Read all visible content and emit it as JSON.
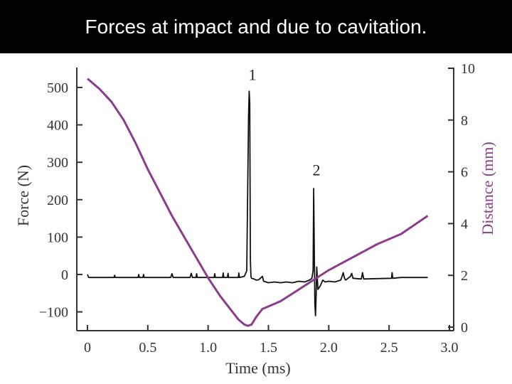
{
  "slide": {
    "title": "Forces at impact and due to cavitation."
  },
  "colors": {
    "force_series": "#111111",
    "distance_series": "#8a3d8a",
    "axis": "#333333",
    "banner": "#000000"
  },
  "chart_data": {
    "type": "line",
    "title": "",
    "xlabel": "Time (ms)",
    "ylabel": "Force (N)",
    "y2label": "Distance (mm)",
    "xlim": [
      0,
      3.0
    ],
    "ylim": [
      -140,
      530
    ],
    "y2lim": [
      0,
      10
    ],
    "x_ticks": [
      0,
      0.5,
      1.0,
      1.5,
      2.0,
      2.5,
      3.0
    ],
    "x_tick_labels": [
      "0",
      "0.5",
      "1.0",
      "1.5",
      "2.0",
      "2.5",
      "3.0"
    ],
    "y_ticks": [
      -100,
      0,
      100,
      200,
      300,
      400,
      500
    ],
    "y_tick_labels": [
      "−100",
      "0",
      "100",
      "200",
      "300",
      "400",
      "500"
    ],
    "y2_ticks": [
      0,
      2,
      4,
      6,
      8,
      10
    ],
    "y2_tick_labels": [
      "0",
      "2",
      "4",
      "6",
      "8",
      "10"
    ],
    "grid": false,
    "annotations": [
      {
        "text": "1",
        "x": 1.35,
        "y": 520
      },
      {
        "text": "2",
        "x": 1.88,
        "y": 265
      }
    ],
    "series": [
      {
        "axis": "left",
        "x": [
          0,
          0.01,
          0.05,
          0.22,
          0.225,
          0.23,
          0.42,
          0.425,
          0.43,
          0.46,
          0.465,
          0.47,
          0.69,
          0.7,
          0.71,
          0.85,
          0.86,
          0.87,
          0.9,
          0.905,
          0.91,
          1.05,
          1.055,
          1.06,
          1.12,
          1.125,
          1.13,
          1.16,
          1.165,
          1.17,
          1.25,
          1.255,
          1.26,
          1.3,
          1.32,
          1.335,
          1.34,
          1.345,
          1.35,
          1.355,
          1.36,
          1.38,
          1.4,
          1.42,
          1.45,
          1.46,
          1.48,
          1.5,
          1.55,
          1.6,
          1.65,
          1.7,
          1.75,
          1.8,
          1.84,
          1.86,
          1.87,
          1.875,
          1.88,
          1.885,
          1.89,
          1.895,
          1.9,
          1.91,
          1.93,
          1.95,
          1.97,
          2.0,
          2.05,
          2.1,
          2.12,
          2.13,
          2.14,
          2.18,
          2.19,
          2.2,
          2.27,
          2.28,
          2.29,
          2.52,
          2.525,
          2.53,
          2.6,
          2.7,
          2.82
        ],
        "y": [
          0,
          -8,
          -8,
          -8,
          -2,
          -8,
          -8,
          0,
          -8,
          -8,
          0,
          -8,
          -8,
          2,
          -8,
          -8,
          3,
          -8,
          -8,
          2,
          -8,
          -8,
          2,
          -8,
          -8,
          4,
          -8,
          -8,
          3,
          -8,
          -8,
          4,
          -8,
          -5,
          10,
          420,
          490,
          460,
          40,
          -5,
          -10,
          -12,
          -15,
          -14,
          -5,
          -18,
          -20,
          -22,
          -20,
          -22,
          -20,
          -22,
          -18,
          -20,
          -15,
          -10,
          10,
          230,
          60,
          -80,
          -110,
          -60,
          20,
          -40,
          -30,
          -15,
          -20,
          -18,
          -20,
          -15,
          5,
          -10,
          -15,
          -5,
          3,
          -10,
          -12,
          5,
          -12,
          -10,
          5,
          -10,
          -8,
          -8,
          -8
        ]
      },
      {
        "axis": "right",
        "x": [
          0,
          0.1,
          0.2,
          0.3,
          0.4,
          0.5,
          0.6,
          0.7,
          0.8,
          0.9,
          1.0,
          1.1,
          1.2,
          1.25,
          1.3,
          1.33,
          1.36,
          1.4,
          1.45,
          1.5,
          1.6,
          1.7,
          1.8,
          1.9,
          2.0,
          2.2,
          2.4,
          2.6,
          2.82
        ],
        "y": [
          9.6,
          9.2,
          8.7,
          8.0,
          7.1,
          6.1,
          5.2,
          4.3,
          3.5,
          2.7,
          1.9,
          1.2,
          0.6,
          0.3,
          0.1,
          0.05,
          0.1,
          0.4,
          0.7,
          0.8,
          1.0,
          1.3,
          1.6,
          1.9,
          2.2,
          2.7,
          3.2,
          3.6,
          4.3
        ]
      }
    ]
  }
}
